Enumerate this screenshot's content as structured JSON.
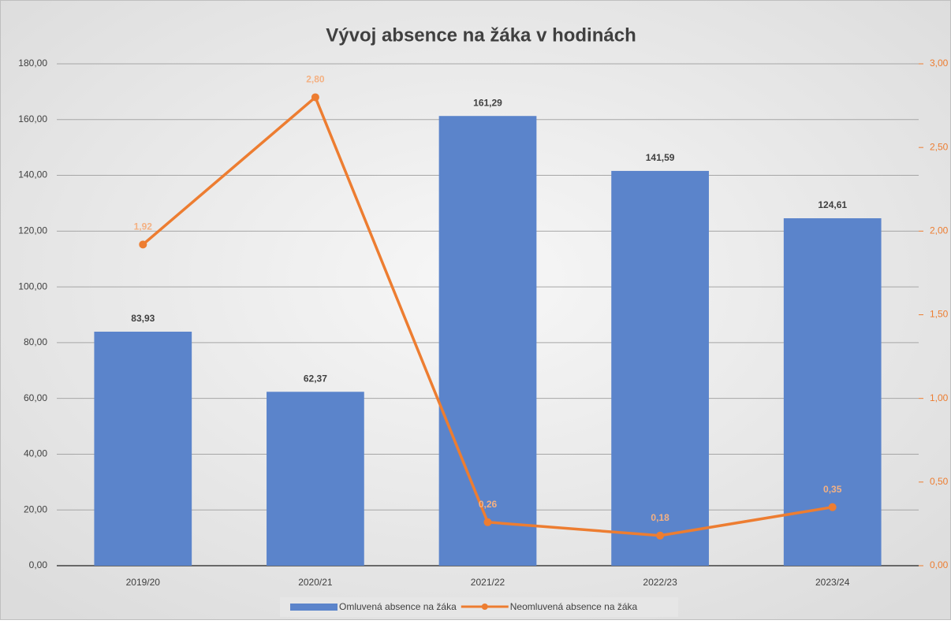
{
  "chart_data": {
    "type": "combo",
    "title": "Vývoj absence na žáka v hodinách",
    "categories": [
      "2019/20",
      "2020/21",
      "2021/22",
      "2022/23",
      "2023/24"
    ],
    "series": [
      {
        "name": "Omluvená absence na žáka",
        "type": "bar",
        "color": "#5b84cb",
        "axis": "y",
        "values": [
          83.93,
          62.37,
          161.29,
          141.59,
          124.61
        ],
        "value_labels": [
          "83,93",
          "62,37",
          "161,29",
          "141,59",
          "124,61"
        ]
      },
      {
        "name": "Neomluvená absence na žáka",
        "type": "line",
        "color": "#ed7d31",
        "axis": "y2",
        "values": [
          1.92,
          2.8,
          0.26,
          0.18,
          0.35
        ],
        "value_labels": [
          "1,92",
          "2,80",
          "0,26",
          "0,18",
          "0,35"
        ]
      }
    ],
    "ylim": [
      0,
      180
    ],
    "yticks": [
      {
        "value": 0,
        "label": "0,00"
      },
      {
        "value": 20,
        "label": "20,00"
      },
      {
        "value": 40,
        "label": "40,00"
      },
      {
        "value": 60,
        "label": "60,00"
      },
      {
        "value": 80,
        "label": "80,00"
      },
      {
        "value": 100,
        "label": "100,00"
      },
      {
        "value": 120,
        "label": "120,00"
      },
      {
        "value": 140,
        "label": "140,00"
      },
      {
        "value": 160,
        "label": "160,00"
      },
      {
        "value": 180,
        "label": "180,00"
      }
    ],
    "y2lim": [
      0,
      3
    ],
    "y2ticks": [
      {
        "value": 0,
        "label": "0,00"
      },
      {
        "value": 0.5,
        "label": "0,50"
      },
      {
        "value": 1,
        "label": "1,00"
      },
      {
        "value": 1.5,
        "label": "1,50"
      },
      {
        "value": 2,
        "label": "2,00"
      },
      {
        "value": 2.5,
        "label": "2,50"
      },
      {
        "value": 3,
        "label": "3,00"
      }
    ],
    "grid": true,
    "legend": "bottom"
  }
}
